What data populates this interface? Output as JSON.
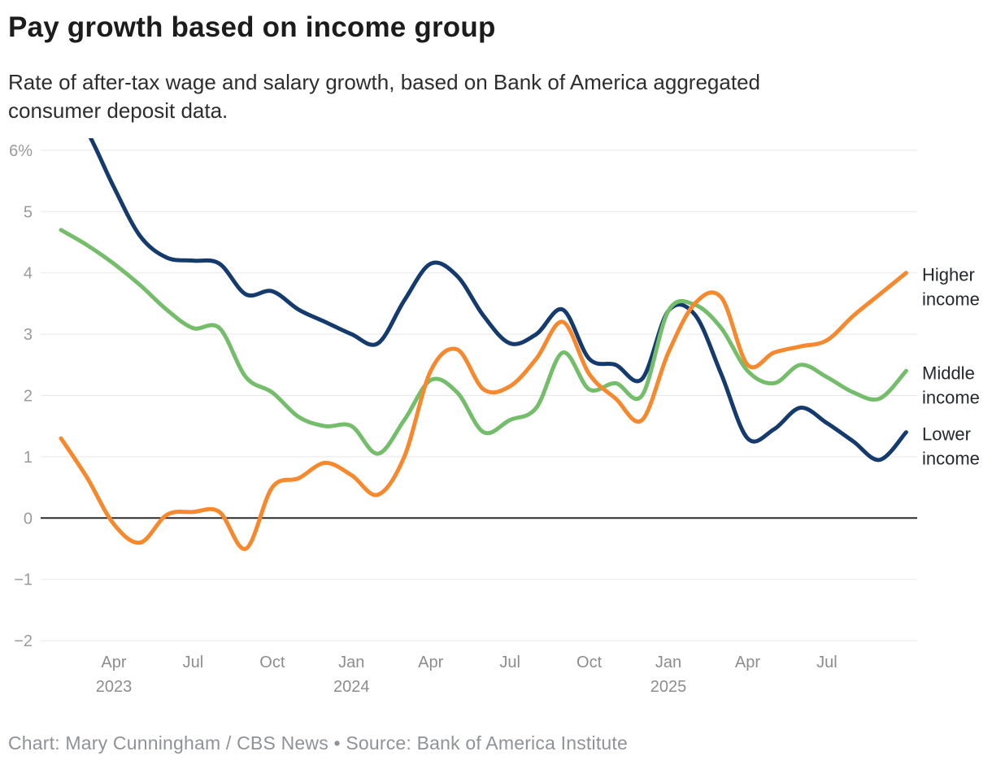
{
  "header": {
    "title": "Pay growth based on income group",
    "subtitle_line1": "Rate of after-tax wage and salary growth, based on Bank of America aggregated",
    "subtitle_line2": "consumer deposit data."
  },
  "footer": {
    "text": "Chart: Mary Cunningham / CBS News • Source: Bank of America Institute"
  },
  "chart_data": {
    "type": "line",
    "title": "Pay growth based on income group",
    "ylabel": "",
    "xlabel": "",
    "ylim": [
      -2.2,
      6.2
    ],
    "grid": "horizontal",
    "legend_position": "right-edge-labels",
    "unit": "percent",
    "colors": {
      "grid": "#e8e8e8",
      "zero_line": "#2b2b2b",
      "y_tick_label": "#9a9a9a",
      "x_tick_label": "#8d8d8d",
      "series_label": "#24282c"
    },
    "y_ticks": [
      {
        "value": 6,
        "label": "6%"
      },
      {
        "value": 5,
        "label": "5"
      },
      {
        "value": 4,
        "label": "4"
      },
      {
        "value": 3,
        "label": "3"
      },
      {
        "value": 2,
        "label": "2"
      },
      {
        "value": 1,
        "label": "1"
      },
      {
        "value": 0,
        "label": "0"
      },
      {
        "value": -1,
        "label": "−1"
      },
      {
        "value": -2,
        "label": "−2"
      }
    ],
    "x_ticks": [
      {
        "index": 2,
        "month": "Apr",
        "year": "2023"
      },
      {
        "index": 5,
        "month": "Jul"
      },
      {
        "index": 8,
        "month": "Oct"
      },
      {
        "index": 11,
        "month": "Jan",
        "year": "2024"
      },
      {
        "index": 14,
        "month": "Apr"
      },
      {
        "index": 17,
        "month": "Jul"
      },
      {
        "index": 20,
        "month": "Oct"
      },
      {
        "index": 23,
        "month": "Jan",
        "year": "2025"
      },
      {
        "index": 26,
        "month": "Apr"
      },
      {
        "index": 29,
        "month": "Jul"
      }
    ],
    "categories": [
      "Feb 2023",
      "Mar 2023",
      "Apr 2023",
      "May 2023",
      "Jun 2023",
      "Jul 2023",
      "Aug 2023",
      "Sep 2023",
      "Oct 2023",
      "Nov 2023",
      "Dec 2023",
      "Jan 2024",
      "Feb 2024",
      "Mar 2024",
      "Apr 2024",
      "May 2024",
      "Jun 2024",
      "Jul 2024",
      "Aug 2024",
      "Sep 2024",
      "Oct 2024",
      "Nov 2024",
      "Dec 2024",
      "Jan 2025",
      "Feb 2025",
      "Mar 2025",
      "Apr 2025",
      "May 2025",
      "Jun 2025",
      "Jul 2025",
      "Aug 2025",
      "Sep 2025",
      "Oct 2025"
    ],
    "series": [
      {
        "name": "Higher income",
        "label_lines": [
          "Higher",
          "income"
        ],
        "color": "#f6882d",
        "values": [
          1.3,
          0.65,
          -0.1,
          -0.4,
          0.05,
          0.1,
          0.1,
          -0.5,
          0.5,
          0.65,
          0.9,
          0.7,
          0.38,
          1.0,
          2.4,
          2.75,
          2.1,
          2.15,
          2.6,
          3.2,
          2.35,
          1.95,
          1.6,
          2.7,
          3.5,
          3.6,
          2.5,
          2.7,
          2.8,
          2.9,
          3.3,
          3.65,
          4.0
        ]
      },
      {
        "name": "Middle income",
        "label_lines": [
          "Middle",
          "income"
        ],
        "color": "#74bd6b",
        "values": [
          4.7,
          4.45,
          4.15,
          3.8,
          3.4,
          3.1,
          3.1,
          2.3,
          2.05,
          1.65,
          1.5,
          1.5,
          1.05,
          1.6,
          2.25,
          2.05,
          1.4,
          1.6,
          1.8,
          2.7,
          2.1,
          2.2,
          2.0,
          3.38,
          3.48,
          3.1,
          2.4,
          2.2,
          2.5,
          2.3,
          2.05,
          1.95,
          2.4
        ]
      },
      {
        "name": "Lower income",
        "label_lines": [
          "Lower",
          "income"
        ],
        "color": "#143a6e",
        "values": [
          6.9,
          6.3,
          5.4,
          4.6,
          4.25,
          4.2,
          4.15,
          3.65,
          3.7,
          3.4,
          3.2,
          3.0,
          2.85,
          3.55,
          4.15,
          3.95,
          3.3,
          2.85,
          3.0,
          3.4,
          2.6,
          2.5,
          2.27,
          3.38,
          3.32,
          2.35,
          1.3,
          1.45,
          1.8,
          1.55,
          1.25,
          0.95,
          1.4
        ]
      }
    ]
  }
}
